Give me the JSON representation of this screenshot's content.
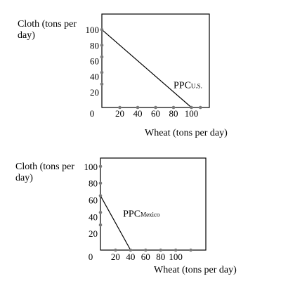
{
  "colors": {
    "line": "#000000",
    "tick_dot": "#7a7a7a",
    "background": "#ffffff"
  },
  "chart_data": [
    {
      "type": "line",
      "title": "",
      "ylabel_lines": [
        "Cloth (tons per",
        "day)"
      ],
      "xlabel": "Wheat (tons per day)",
      "xlim": [
        0,
        120
      ],
      "ylim": [
        0,
        120
      ],
      "x_ticks": [
        20,
        40,
        60,
        80,
        100,
        110
      ],
      "x_tick_labels": [
        {
          "value": 20,
          "label": "20"
        },
        {
          "value": 40,
          "label": "40"
        },
        {
          "value": 60,
          "label": "60"
        },
        {
          "value": 80,
          "label": "80"
        },
        {
          "value": 100,
          "label": "100"
        }
      ],
      "y_ticks": [
        30,
        45,
        65,
        80,
        100
      ],
      "y_tick_labels": [
        {
          "value": 20,
          "label": "20"
        },
        {
          "value": 40,
          "label": "40"
        },
        {
          "value": 60,
          "label": "60"
        },
        {
          "value": 80,
          "label": "80"
        },
        {
          "value": 100,
          "label": "100"
        }
      ],
      "origin_label": "0",
      "series": [
        {
          "name": "PPC U.S.",
          "x": [
            0,
            100
          ],
          "y": [
            100,
            0
          ]
        }
      ],
      "annotation": {
        "main": "PPC",
        "sub": "U.S.",
        "x": 80,
        "y": 25
      }
    },
    {
      "type": "line",
      "title": "",
      "ylabel_lines": [
        "Cloth (tons per",
        "day)"
      ],
      "xlabel": "Wheat (tons per day)",
      "xlim": [
        0,
        140
      ],
      "ylim": [
        0,
        110
      ],
      "x_ticks": [
        20,
        40,
        60,
        80,
        100,
        120
      ],
      "x_tick_labels": [
        {
          "value": 20,
          "label": "20"
        },
        {
          "value": 40,
          "label": "40"
        },
        {
          "value": 60,
          "label": "60"
        },
        {
          "value": 80,
          "label": "80"
        },
        {
          "value": 100,
          "label": "100"
        }
      ],
      "y_ticks": [
        30,
        45,
        65,
        80,
        100
      ],
      "y_tick_labels": [
        {
          "value": 20,
          "label": "20"
        },
        {
          "value": 40,
          "label": "40"
        },
        {
          "value": 60,
          "label": "60"
        },
        {
          "value": 80,
          "label": "80"
        },
        {
          "value": 100,
          "label": "100"
        }
      ],
      "origin_label": "0",
      "series": [
        {
          "name": "PPC Mexico",
          "x": [
            0,
            40
          ],
          "y": [
            65,
            0
          ]
        }
      ],
      "annotation": {
        "main": "PPC",
        "sub": "Mexico",
        "x": 30,
        "y": 40
      }
    }
  ]
}
